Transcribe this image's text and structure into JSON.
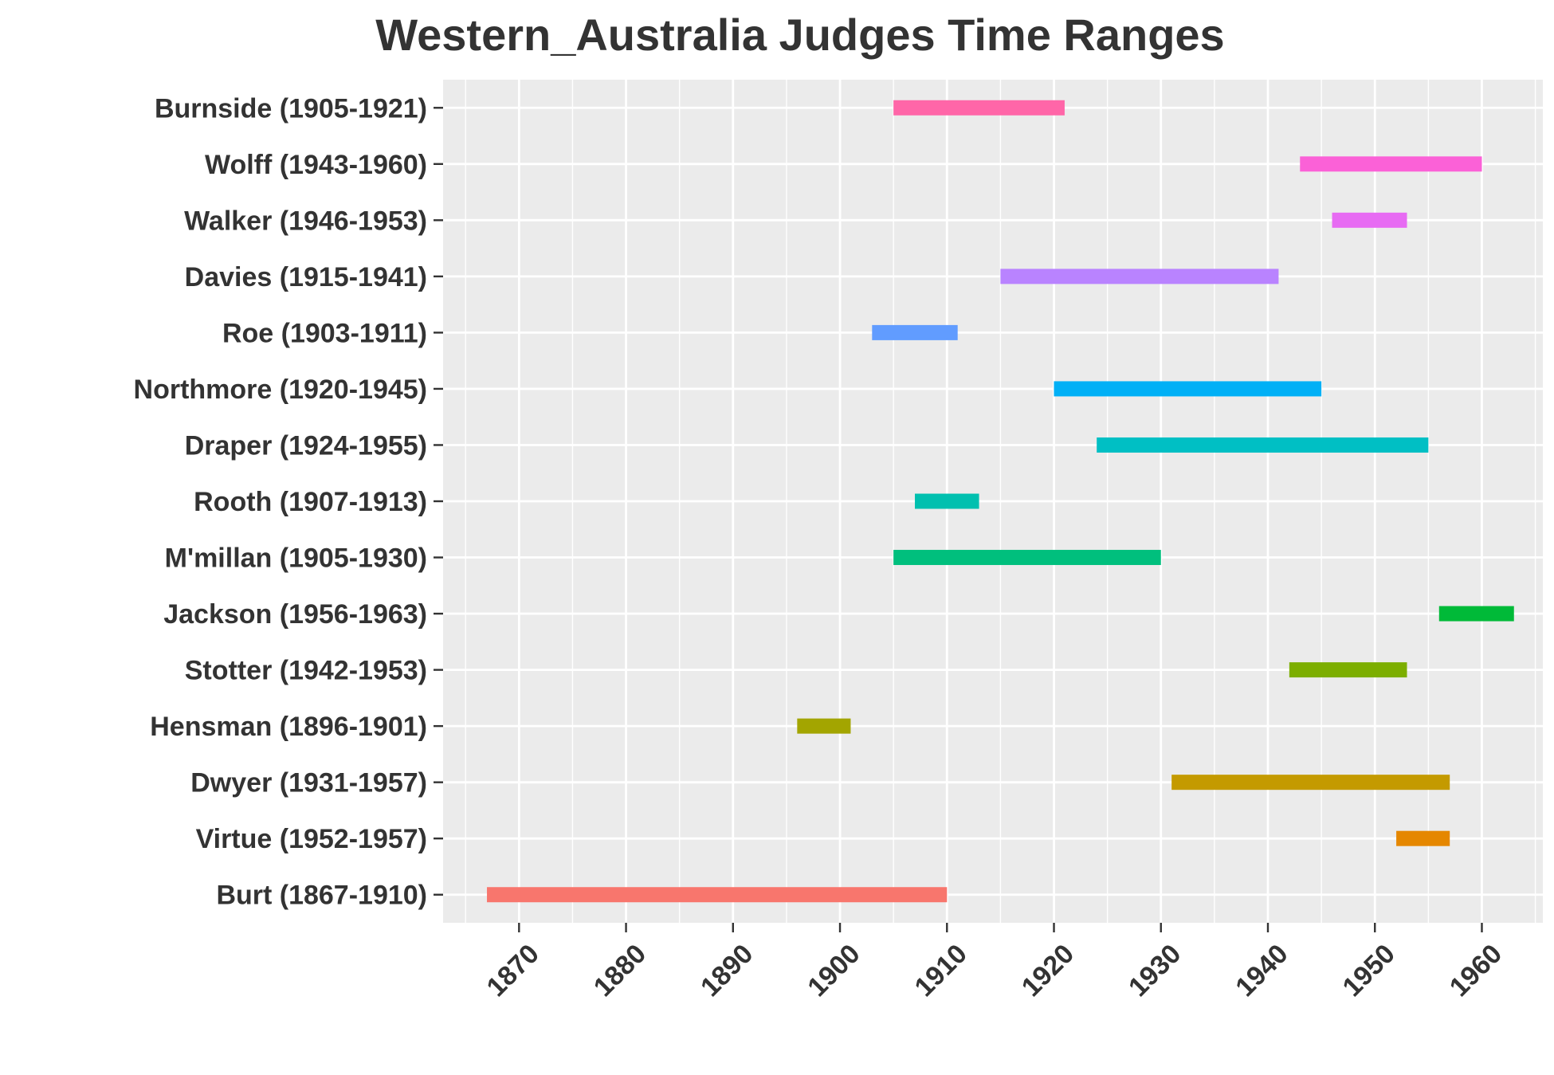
{
  "chart_data": {
    "type": "bar",
    "orientation": "horizontal-range",
    "title": "Western_Australia Judges Time Ranges",
    "xlabel": "",
    "ylabel": "",
    "xlim": [
      1862.9,
      1965.7
    ],
    "x_ticks": [
      1870,
      1880,
      1890,
      1900,
      1910,
      1920,
      1930,
      1940,
      1950,
      1960
    ],
    "grid": true,
    "legend": "none",
    "panel_background": "#ebebeb",
    "grid_color": "#ffffff",
    "text_color": "#333333",
    "categories": [
      "Burnside (1905-1921)",
      "Wolff (1943-1960)",
      "Walker (1946-1953)",
      "Davies (1915-1941)",
      "Roe (1903-1911)",
      "Northmore (1920-1945)",
      "Draper (1924-1955)",
      "Rooth (1907-1913)",
      "M'millan (1905-1930)",
      "Jackson (1956-1963)",
      "Stotter (1942-1953)",
      "Hensman (1896-1901)",
      "Dwyer (1931-1957)",
      "Virtue (1952-1957)",
      "Burt (1867-1910)"
    ],
    "ranges": [
      {
        "start": 1905,
        "end": 1921,
        "color": "#ff66a8"
      },
      {
        "start": 1943,
        "end": 1960,
        "color": "#fb61d7"
      },
      {
        "start": 1946,
        "end": 1953,
        "color": "#e76bf3"
      },
      {
        "start": 1915,
        "end": 1941,
        "color": "#b983ff"
      },
      {
        "start": 1903,
        "end": 1911,
        "color": "#619cff"
      },
      {
        "start": 1920,
        "end": 1945,
        "color": "#00b0f6"
      },
      {
        "start": 1924,
        "end": 1955,
        "color": "#00bfc4"
      },
      {
        "start": 1907,
        "end": 1913,
        "color": "#00c0af"
      },
      {
        "start": 1905,
        "end": 1930,
        "color": "#00bf7d"
      },
      {
        "start": 1956,
        "end": 1963,
        "color": "#00ba38"
      },
      {
        "start": 1942,
        "end": 1953,
        "color": "#7cae00"
      },
      {
        "start": 1896,
        "end": 1901,
        "color": "#a3a500"
      },
      {
        "start": 1931,
        "end": 1957,
        "color": "#c49a00"
      },
      {
        "start": 1952,
        "end": 1957,
        "color": "#e58700"
      },
      {
        "start": 1867,
        "end": 1910,
        "color": "#f8766d"
      }
    ]
  }
}
